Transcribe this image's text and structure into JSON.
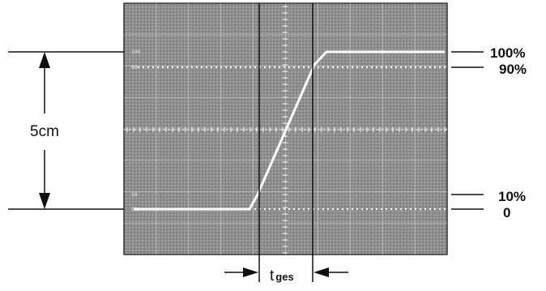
{
  "labels": {
    "height": "5cm",
    "pct_100": "100%",
    "pct_90": "90%",
    "pct_10": "10%",
    "pct_0": "0",
    "rise_time_main": "t",
    "rise_time_sub": "ges"
  },
  "graticule": {
    "mark_100": "100",
    "mark_90": "90",
    "mark_10": "10",
    "mark_0": "0%"
  },
  "colors": {
    "screen": "#8a8a8a",
    "grid": "#d6d6d6",
    "trace": "#ffffff",
    "ink": "#111111"
  },
  "signal": {
    "description_levels_pct": [
      0,
      10,
      90,
      100
    ]
  }
}
